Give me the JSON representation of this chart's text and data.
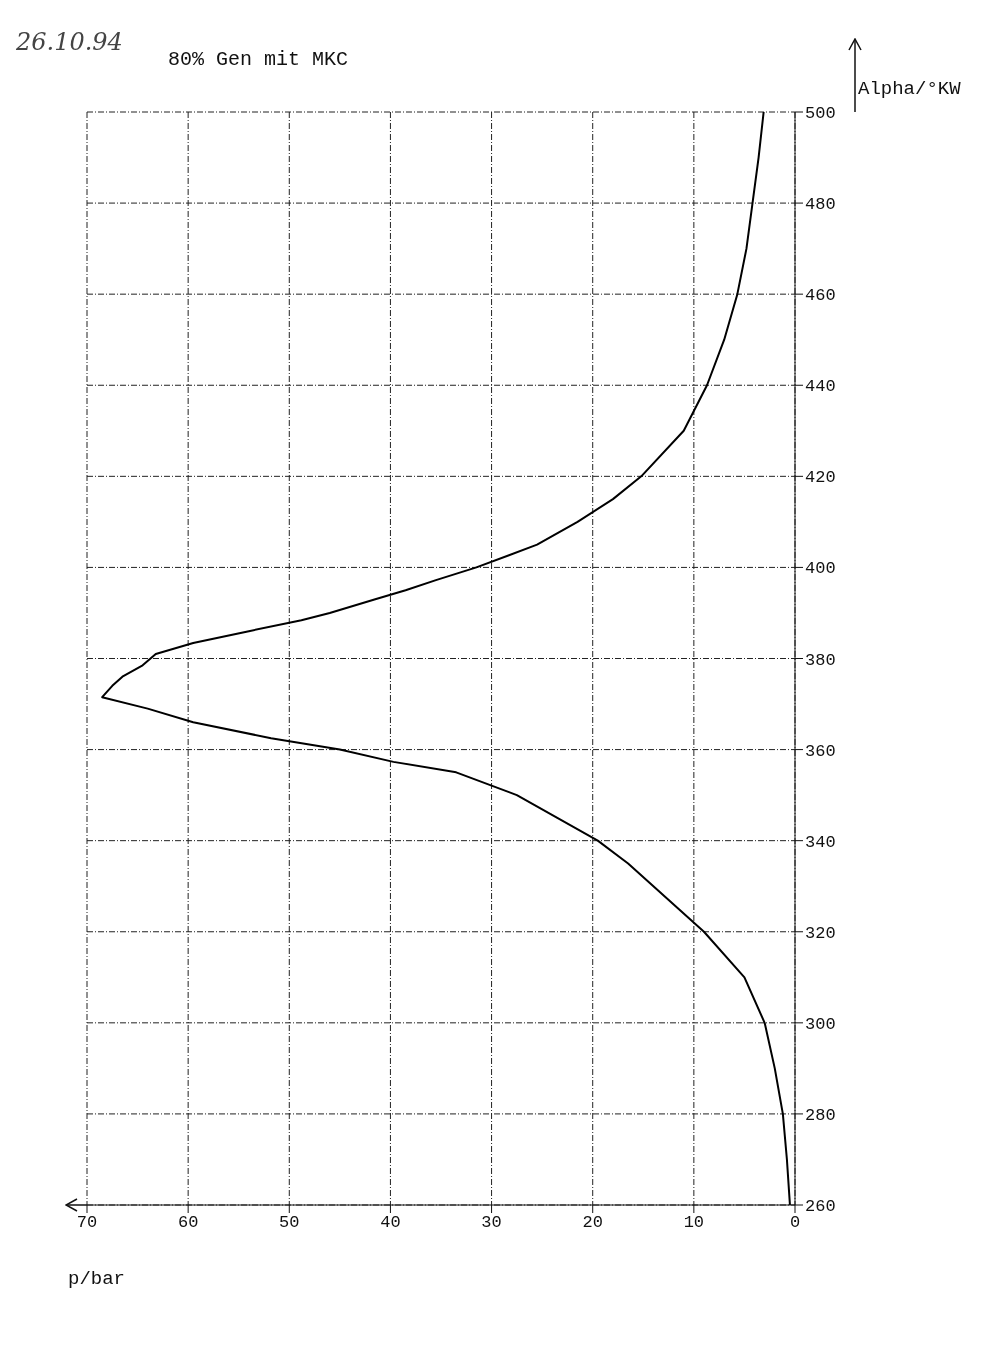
{
  "chart_data": {
    "type": "line",
    "title": "80% Gen mit MKC",
    "xlabel": "p/bar",
    "ylabel": "Alpha/°KW",
    "annotations": [
      "26.10.94"
    ],
    "x": [
      0.5,
      0.8,
      1.2,
      2,
      3,
      5,
      9,
      11.5,
      14,
      16.5,
      19.5,
      23.5,
      27.5,
      33.5,
      39.7,
      45,
      51.8,
      59.5,
      64,
      68.5,
      67.5,
      66.5,
      64.5,
      63.2,
      59.5,
      54,
      48.8,
      46,
      41.5,
      38.5,
      35.5,
      31.5,
      25.5,
      21.5,
      18,
      15.2,
      11,
      8.7,
      7,
      5.7,
      4.8,
      4.2,
      3.6,
      3.1
    ],
    "series": [
      {
        "color": "#000000",
        "values": [
          260,
          270,
          280,
          290,
          300,
          310,
          320,
          325,
          330,
          335,
          340,
          345,
          350,
          355,
          357.3,
          360,
          362.5,
          366,
          369,
          371.5,
          374,
          376,
          378.5,
          381,
          383.4,
          386,
          388.4,
          390,
          393,
          395,
          397.2,
          400,
          405,
          410,
          415,
          420,
          430,
          440,
          450,
          460,
          470,
          480,
          490,
          500
        ]
      }
    ],
    "xlim": [
      70,
      0
    ],
    "xticks": [
      70,
      60,
      50,
      40,
      30,
      20,
      10,
      0
    ],
    "ylim": [
      260,
      500
    ],
    "yticks": [
      260,
      280,
      300,
      320,
      340,
      360,
      380,
      400,
      420,
      440,
      460,
      480,
      500
    ],
    "grid": true,
    "marker": "none",
    "line_style": "solid"
  }
}
